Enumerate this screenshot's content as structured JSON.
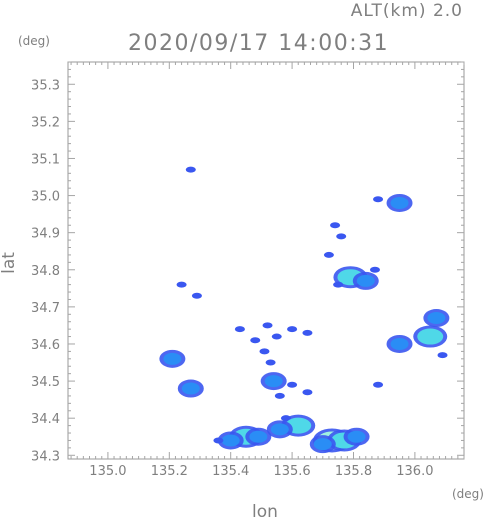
{
  "chart_data": {
    "type": "scatter",
    "title": "2020/09/17 14:00:31",
    "subtitle": "ALT(km) 2.0",
    "xlabel": "lon",
    "ylabel": "lat",
    "x_unit": "(deg)",
    "y_unit": "(deg)",
    "xlim": [
      134.87,
      136.16
    ],
    "ylim": [
      34.29,
      35.36
    ],
    "xticks": [
      "135.0",
      "135.2",
      "135.4",
      "135.6",
      "135.8",
      "136.0"
    ],
    "yticks": [
      "34.3",
      "34.4",
      "34.5",
      "34.6",
      "34.7",
      "34.8",
      "34.9",
      "35.0",
      "35.1",
      "35.2",
      "35.3"
    ],
    "grid": false,
    "colors": {
      "weak": "#3a57f0",
      "moderate": "#2a8df5",
      "strong": "#4fd8e8",
      "core": "#9ff0e0"
    },
    "echoes": [
      {
        "lon": 135.27,
        "lat": 35.07,
        "level": "weak"
      },
      {
        "lon": 135.95,
        "lat": 34.98,
        "level": "moderate"
      },
      {
        "lon": 135.88,
        "lat": 34.99,
        "level": "weak"
      },
      {
        "lon": 135.76,
        "lat": 34.89,
        "level": "weak"
      },
      {
        "lon": 135.74,
        "lat": 34.92,
        "level": "weak"
      },
      {
        "lon": 135.72,
        "lat": 34.84,
        "level": "weak"
      },
      {
        "lon": 135.79,
        "lat": 34.78,
        "level": "strong"
      },
      {
        "lon": 135.84,
        "lat": 34.77,
        "level": "moderate"
      },
      {
        "lon": 135.75,
        "lat": 34.76,
        "level": "weak"
      },
      {
        "lon": 135.87,
        "lat": 34.8,
        "level": "weak"
      },
      {
        "lon": 135.29,
        "lat": 34.73,
        "level": "weak"
      },
      {
        "lon": 135.24,
        "lat": 34.76,
        "level": "weak"
      },
      {
        "lon": 135.52,
        "lat": 34.65,
        "level": "weak"
      },
      {
        "lon": 135.55,
        "lat": 34.62,
        "level": "weak"
      },
      {
        "lon": 135.6,
        "lat": 34.64,
        "level": "weak"
      },
      {
        "lon": 135.65,
        "lat": 34.63,
        "level": "weak"
      },
      {
        "lon": 135.43,
        "lat": 34.64,
        "level": "weak"
      },
      {
        "lon": 136.05,
        "lat": 34.62,
        "level": "strong"
      },
      {
        "lon": 136.07,
        "lat": 34.67,
        "level": "moderate"
      },
      {
        "lon": 135.95,
        "lat": 34.6,
        "level": "moderate"
      },
      {
        "lon": 136.09,
        "lat": 34.57,
        "level": "weak"
      },
      {
        "lon": 135.53,
        "lat": 34.55,
        "level": "weak"
      },
      {
        "lon": 135.54,
        "lat": 34.5,
        "level": "moderate"
      },
      {
        "lon": 135.56,
        "lat": 34.46,
        "level": "weak"
      },
      {
        "lon": 135.6,
        "lat": 34.49,
        "level": "weak"
      },
      {
        "lon": 135.21,
        "lat": 34.56,
        "level": "moderate"
      },
      {
        "lon": 135.27,
        "lat": 34.48,
        "level": "moderate"
      },
      {
        "lon": 135.88,
        "lat": 34.49,
        "level": "weak"
      },
      {
        "lon": 135.65,
        "lat": 34.47,
        "level": "weak"
      },
      {
        "lon": 135.58,
        "lat": 34.4,
        "level": "weak"
      },
      {
        "lon": 135.62,
        "lat": 34.38,
        "level": "strong"
      },
      {
        "lon": 135.56,
        "lat": 34.37,
        "level": "moderate"
      },
      {
        "lon": 135.73,
        "lat": 34.34,
        "level": "core"
      },
      {
        "lon": 135.77,
        "lat": 34.34,
        "level": "strong"
      },
      {
        "lon": 135.81,
        "lat": 34.35,
        "level": "moderate"
      },
      {
        "lon": 135.7,
        "lat": 34.33,
        "level": "moderate"
      },
      {
        "lon": 135.45,
        "lat": 34.35,
        "level": "strong"
      },
      {
        "lon": 135.49,
        "lat": 34.35,
        "level": "moderate"
      },
      {
        "lon": 135.4,
        "lat": 34.34,
        "level": "moderate"
      },
      {
        "lon": 135.36,
        "lat": 34.34,
        "level": "weak"
      },
      {
        "lon": 135.48,
        "lat": 34.61,
        "level": "weak"
      },
      {
        "lon": 135.51,
        "lat": 34.58,
        "level": "weak"
      }
    ]
  }
}
